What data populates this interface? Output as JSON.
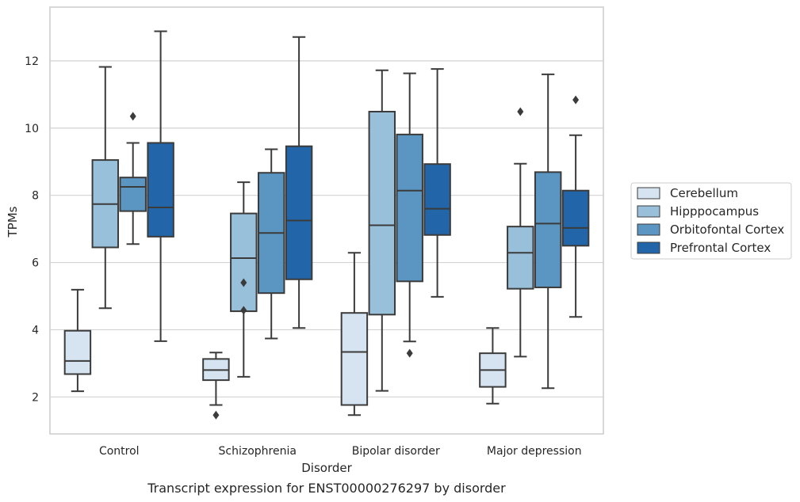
{
  "chart_data": {
    "type": "box",
    "xlabel": "Disorder",
    "ylabel": "TPMs",
    "caption": "Transcript expression for ENST00000276297 by disorder",
    "ylim": [
      0.9,
      13.6
    ],
    "yticks": [
      2,
      4,
      6,
      8,
      10,
      12
    ],
    "grid": "horizontal",
    "legend_position": "right",
    "categories": [
      "Control",
      "Schizophrenia",
      "Bipolar disorder",
      "Major depression"
    ],
    "series": [
      {
        "name": "Cerebellum",
        "color": "#d6e4f2",
        "boxes": [
          {
            "whislo": 2.17,
            "q1": 2.68,
            "med": 3.07,
            "q3": 3.97,
            "whishi": 5.19,
            "fliers": []
          },
          {
            "whislo": 1.76,
            "q1": 2.5,
            "med": 2.8,
            "q3": 3.13,
            "whishi": 3.32,
            "fliers": [
              1.46
            ]
          },
          {
            "whislo": 1.46,
            "q1": 1.76,
            "med": 3.34,
            "q3": 4.5,
            "whishi": 6.29,
            "fliers": []
          },
          {
            "whislo": 1.8,
            "q1": 2.3,
            "med": 2.8,
            "q3": 3.3,
            "whishi": 4.05,
            "fliers": []
          }
        ]
      },
      {
        "name": "Hipppocampus",
        "color": "#99c0db",
        "boxes": [
          {
            "whislo": 4.64,
            "q1": 6.45,
            "med": 7.74,
            "q3": 9.05,
            "whishi": 11.82,
            "fliers": []
          },
          {
            "whislo": 2.6,
            "q1": 4.55,
            "med": 6.13,
            "q3": 7.46,
            "whishi": 8.39,
            "fliers": [
              5.4,
              4.58
            ]
          },
          {
            "whislo": 2.18,
            "q1": 4.45,
            "med": 7.11,
            "q3": 10.49,
            "whishi": 11.72,
            "fliers": []
          },
          {
            "whislo": 3.2,
            "q1": 5.22,
            "med": 6.29,
            "q3": 7.07,
            "whishi": 8.94,
            "fliers": [
              10.49
            ]
          }
        ]
      },
      {
        "name": "Orbitofontal Cortex",
        "color": "#5b96c2",
        "boxes": [
          {
            "whislo": 6.55,
            "q1": 7.53,
            "med": 8.25,
            "q3": 8.53,
            "whishi": 9.56,
            "fliers": [
              10.35
            ]
          },
          {
            "whislo": 3.74,
            "q1": 5.09,
            "med": 6.88,
            "q3": 8.67,
            "whishi": 9.37,
            "fliers": []
          },
          {
            "whislo": 3.65,
            "q1": 5.44,
            "med": 8.14,
            "q3": 9.81,
            "whishi": 11.63,
            "fliers": [
              3.3
            ]
          },
          {
            "whislo": 2.26,
            "q1": 5.26,
            "med": 7.16,
            "q3": 8.69,
            "whishi": 11.6,
            "fliers": []
          }
        ]
      },
      {
        "name": "Prefrontal Cortex",
        "color": "#2265a9",
        "boxes": [
          {
            "whislo": 3.66,
            "q1": 6.77,
            "med": 7.64,
            "q3": 9.56,
            "whishi": 12.88,
            "fliers": []
          },
          {
            "whislo": 4.05,
            "q1": 5.5,
            "med": 7.25,
            "q3": 9.46,
            "whishi": 12.71,
            "fliers": []
          },
          {
            "whislo": 4.98,
            "q1": 6.82,
            "med": 7.6,
            "q3": 8.93,
            "whishi": 11.76,
            "fliers": []
          },
          {
            "whislo": 4.38,
            "q1": 6.5,
            "med": 7.03,
            "q3": 8.14,
            "whishi": 9.79,
            "fliers": [
              10.84
            ]
          }
        ]
      }
    ]
  }
}
